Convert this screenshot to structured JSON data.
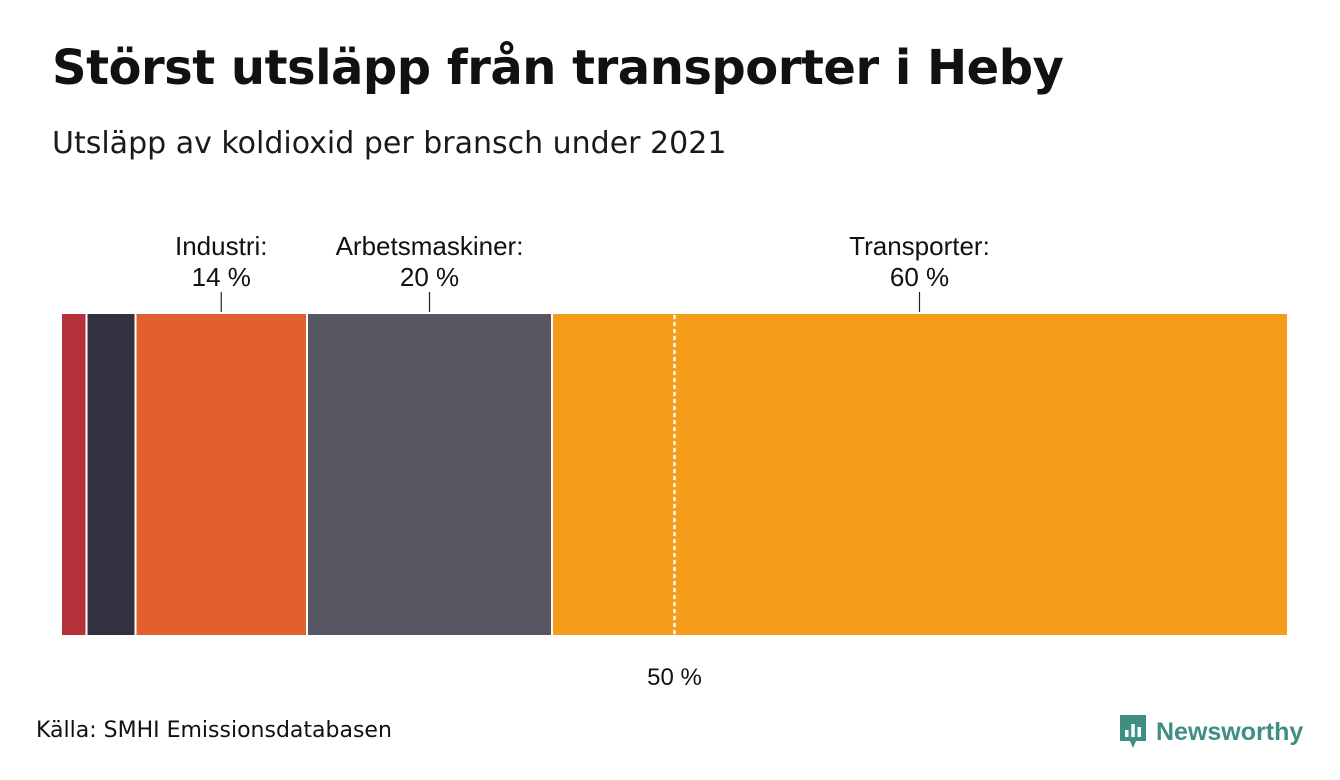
{
  "title": "Störst utsläpp från transporter i Heby",
  "subtitle": "Utsläpp av koldioxid per bransch under 2021",
  "source": "Källa: SMHI Emissionsdatabasen",
  "logo": {
    "name": "Newsworthy",
    "icon": "newsworthy-logo-icon",
    "color": "#3e8e84"
  },
  "chart_data": {
    "type": "bar",
    "orientation": "horizontal-stacked-100",
    "unit": "%",
    "xlim": [
      0,
      100
    ],
    "reference_line": {
      "value": 50,
      "label": "50 %",
      "style": "dotted"
    },
    "segments": [
      {
        "value": 2,
        "color": "#b5323a",
        "label": null
      },
      {
        "value": 4,
        "color": "#33313f",
        "label": null
      },
      {
        "value": 14,
        "color": "#e1602d",
        "label": "Industri:",
        "value_label": "14 %"
      },
      {
        "value": 20,
        "color": "#595664",
        "label": "Arbetsmaskiner:",
        "value_label": "20 %"
      },
      {
        "value": 60,
        "color": "#f59d1a",
        "label": "Transporter:",
        "value_label": "60 %"
      }
    ]
  }
}
